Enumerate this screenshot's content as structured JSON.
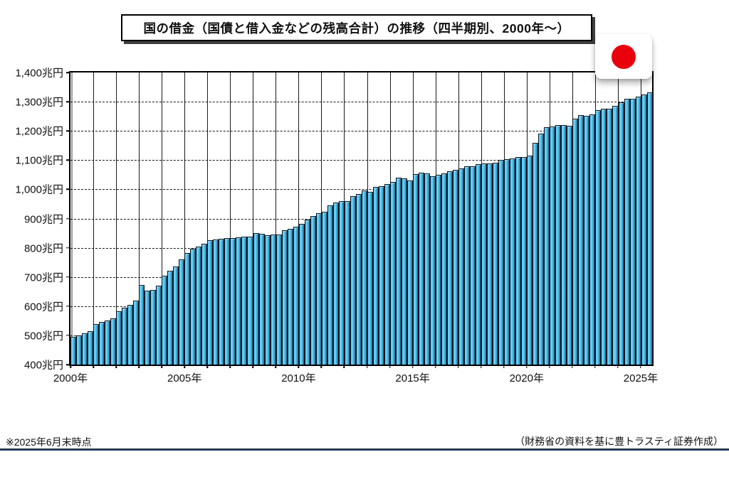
{
  "title": "国の借金（国債と借入金などの残高合計）の推移（四半期別、2000年～）",
  "footer": {
    "note_left": "※2025年6月末時点",
    "note_right": "（財務省の資料を基に豊トラスティ証券作成）"
  },
  "flag": {
    "label": "japan-flag",
    "circle_color": "#e8000d"
  },
  "colors": {
    "bar_fill": "#64cdf6",
    "bar_shade": "#14506b",
    "bar_border": "#081520",
    "grid": "#1a1a1a",
    "footer_line": "#17375e"
  },
  "chart_data": {
    "type": "bar",
    "title": "国の借金（国債と借入金などの残高合計）の推移（四半期別、2000年～）",
    "xlabel": "",
    "ylabel": "兆円",
    "unit": "兆円",
    "ylim": [
      400,
      1400
    ],
    "grid": true,
    "legend": false,
    "y_ticks": [
      "400兆円",
      "500兆円",
      "600兆円",
      "700兆円",
      "800兆円",
      "900兆円",
      "1,000兆円",
      "1,100兆円",
      "1,200兆円",
      "1,300兆円",
      "1,400兆円"
    ],
    "x_tick_years": [
      2000,
      2005,
      2010,
      2015,
      2020,
      2025
    ],
    "x_tick_labels": [
      "2000年",
      "2005年",
      "2010年",
      "2015年",
      "2020年",
      "2025年"
    ],
    "start_year": 2000,
    "quarters_per_year": 4,
    "values": [
      494,
      500,
      506,
      514,
      538,
      546,
      551,
      557,
      583,
      594,
      605,
      620,
      673,
      653,
      656,
      670,
      703,
      720,
      737,
      759,
      782,
      796,
      805,
      813,
      827,
      828,
      830,
      832,
      834,
      836,
      838,
      838,
      849,
      848,
      843,
      846,
      846,
      860,
      864,
      871,
      883,
      896,
      909,
      919,
      924,
      944,
      954,
      959,
      960,
      976,
      983,
      997,
      992,
      1009,
      1011,
      1018,
      1025,
      1039,
      1038,
      1030,
      1053,
      1057,
      1054,
      1045,
      1049,
      1054,
      1062,
      1066,
      1072,
      1079,
      1080,
      1086,
      1088,
      1088,
      1092,
      1101,
      1103,
      1105,
      1111,
      1111,
      1115,
      1159,
      1190,
      1212,
      1216,
      1221,
      1219,
      1218,
      1241,
      1255,
      1251,
      1257,
      1270,
      1276,
      1276,
      1286,
      1297,
      1311,
      1310,
      1318,
      1324,
      1331
    ]
  }
}
